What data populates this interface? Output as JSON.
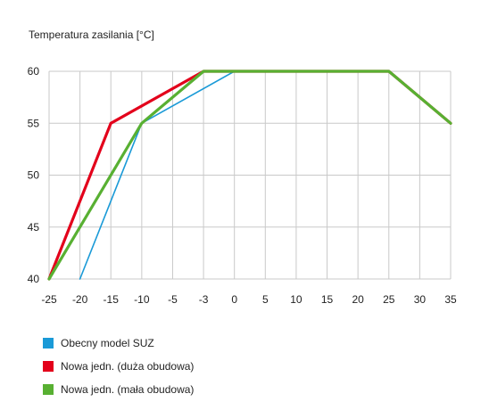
{
  "chart_data": {
    "type": "line",
    "title": "",
    "ylabel": "Temperatura zasilania [°C]",
    "xlabel": "",
    "x_ticks": [
      -25,
      -20,
      -15,
      -10,
      -5,
      -3,
      0,
      5,
      10,
      15,
      20,
      25,
      30,
      35
    ],
    "y_ticks": [
      40,
      45,
      50,
      55,
      60
    ],
    "ylim": [
      40,
      60
    ],
    "grid": true,
    "legend_position": "bottom-left",
    "series": [
      {
        "name": "Obecny model SUZ",
        "color": "#1a9ad7",
        "points": [
          [
            -20,
            40
          ],
          [
            -10,
            55
          ],
          [
            0,
            60
          ],
          [
            25,
            60
          ],
          [
            35,
            55
          ]
        ]
      },
      {
        "name": "Nowa jedn. (duża obudowa)",
        "color": "#e3001b",
        "points": [
          [
            -25,
            40
          ],
          [
            -15,
            55
          ],
          [
            -3,
            60
          ],
          [
            25,
            60
          ],
          [
            35,
            55
          ]
        ]
      },
      {
        "name": "Nowa jedn. (mała obudowa)",
        "color": "#58b032",
        "points": [
          [
            -25,
            40
          ],
          [
            -10,
            55
          ],
          [
            -3,
            60
          ],
          [
            25,
            60
          ],
          [
            35,
            55
          ]
        ]
      }
    ]
  }
}
